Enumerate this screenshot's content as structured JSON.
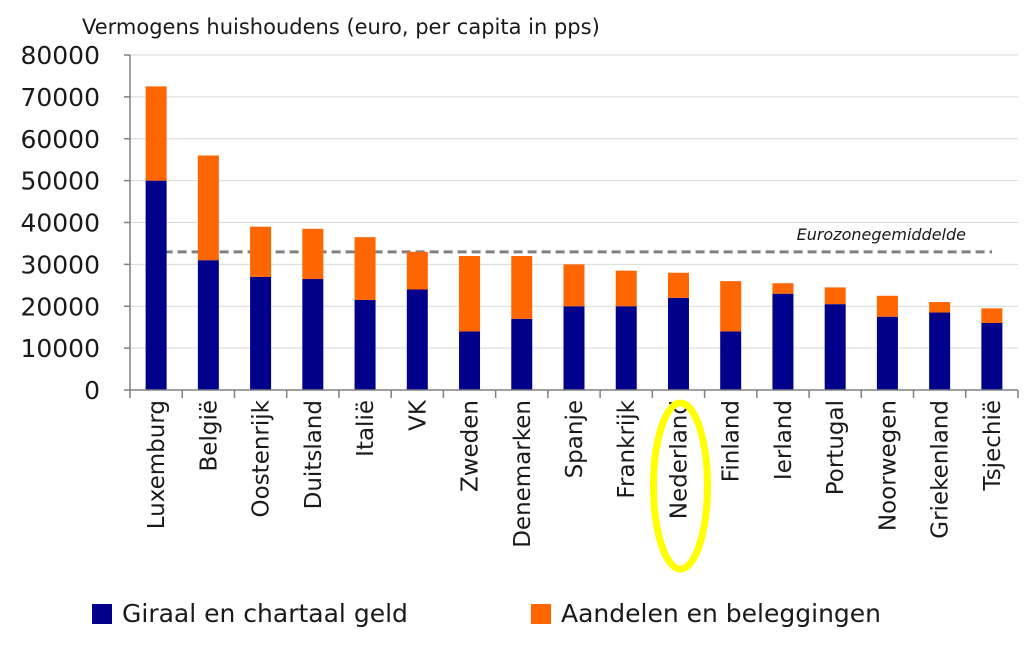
{
  "chart_data": {
    "type": "bar",
    "stacked": true,
    "title": "Vermogens huishoudens (euro, per capita in pps)",
    "xlabel": "",
    "ylabel": "",
    "ylim": [
      0,
      80000
    ],
    "yticks": [
      0,
      10000,
      20000,
      30000,
      40000,
      50000,
      60000,
      70000,
      80000
    ],
    "grid": "horizontal",
    "legend": "bottom",
    "categories": [
      "Luxemburg",
      "België",
      "Oostenrijk",
      "Duitsland",
      "Italië",
      "VK",
      "Zweden",
      "Denemarken",
      "Spanje",
      "Frankrijk",
      "Nederland",
      "Finland",
      "Ierland",
      "Portugal",
      "Noorwegen",
      "Griekenland",
      "Tsjechië"
    ],
    "series": [
      {
        "name": "Giraal en chartaal geld",
        "color": "#00008b",
        "values": [
          50000,
          31000,
          27000,
          26500,
          21500,
          24000,
          14000,
          17000,
          20000,
          20000,
          22000,
          14000,
          23000,
          20500,
          17500,
          18500,
          16000
        ]
      },
      {
        "name": "Aandelen en beleggingen",
        "color": "#ff6600",
        "values": [
          22500,
          25000,
          12000,
          12000,
          15000,
          9000,
          18000,
          15000,
          10000,
          8500,
          6000,
          12000,
          2500,
          4000,
          5000,
          2500,
          3500
        ]
      }
    ],
    "reference_line": {
      "label": "Eurozonegemiddelde",
      "value": 33000,
      "color": "#808080",
      "style": "dashed"
    },
    "highlight": {
      "category": "Nederland",
      "color": "#ffff00"
    }
  }
}
